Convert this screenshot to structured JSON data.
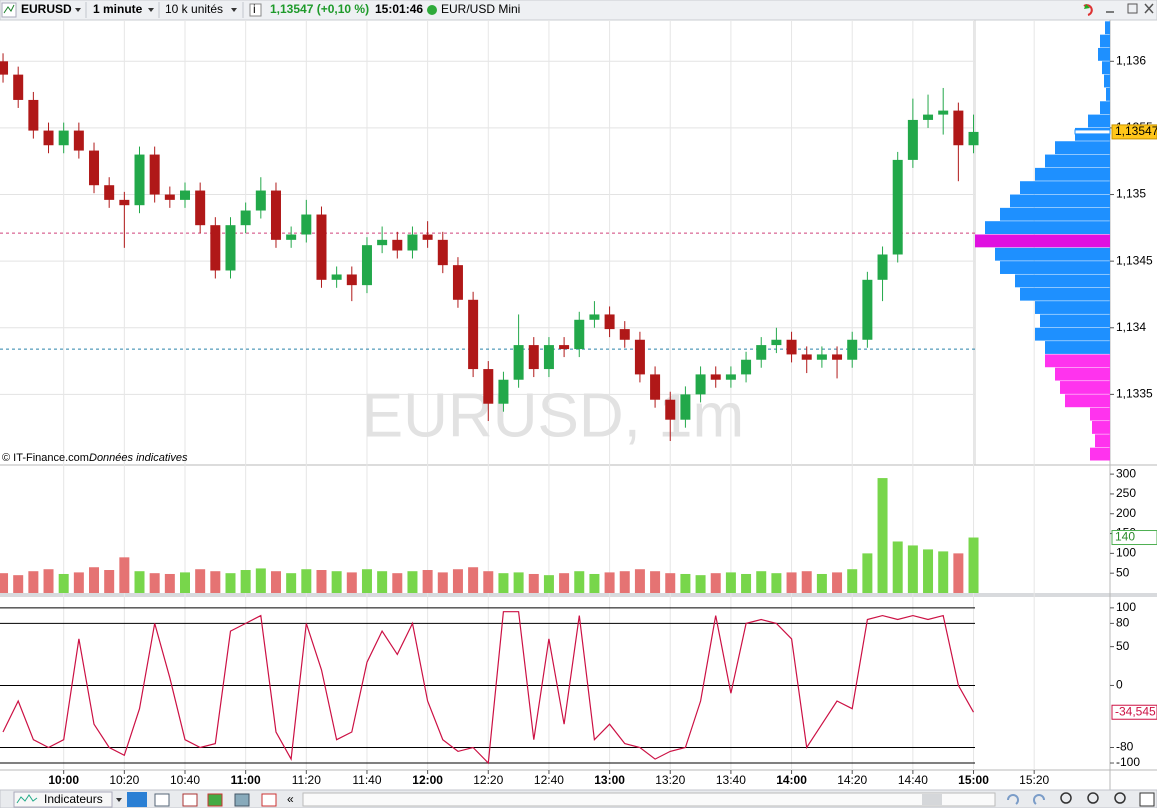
{
  "toolbar": {
    "symbol": "EURUSD",
    "interval": "1 minute",
    "size": "10 k unités",
    "quote": "1,13547 (+0,10 %)",
    "time": "15:01:46",
    "account": "EUR/USD Mini"
  },
  "footer": {
    "copyright": "© IT-Finance.com",
    "note": "Données indicatives"
  },
  "bottom_bar": {
    "indicators": "Indicateurs"
  },
  "chart_data": [
    {
      "type": "candlestick",
      "watermark": "EURUSD, 1m",
      "x": [
        "09:40",
        "09:45",
        "09:50",
        "09:55",
        "10:00",
        "10:05",
        "10:10",
        "10:15",
        "10:20",
        "10:25",
        "10:30",
        "10:35",
        "10:40",
        "10:45",
        "10:50",
        "10:55",
        "11:00",
        "11:05",
        "11:10",
        "11:15",
        "11:20",
        "11:25",
        "11:30",
        "11:35",
        "11:40",
        "11:45",
        "11:50",
        "11:55",
        "12:00",
        "12:05",
        "12:10",
        "12:15",
        "12:20",
        "12:25",
        "12:30",
        "12:35",
        "12:40",
        "12:45",
        "12:50",
        "12:55",
        "13:00",
        "13:05",
        "13:10",
        "13:15",
        "13:20",
        "13:25",
        "13:30",
        "13:35",
        "13:40",
        "13:45",
        "13:50",
        "13:55",
        "14:00",
        "14:05",
        "14:10",
        "14:15",
        "14:20",
        "14:25",
        "14:30",
        "14:35",
        "14:40",
        "14:45",
        "14:50",
        "14:55",
        "15:00"
      ],
      "open": [
        1.136,
        1.1359,
        1.13571,
        1.13548,
        1.13537,
        1.13548,
        1.13533,
        1.13507,
        1.13496,
        1.13492,
        1.1353,
        1.135,
        1.13496,
        1.13503,
        1.13477,
        1.13443,
        1.13477,
        1.13488,
        1.13503,
        1.13466,
        1.1347,
        1.13485,
        1.13436,
        1.1344,
        1.13432,
        1.13462,
        1.13466,
        1.13458,
        1.1347,
        1.13466,
        1.13447,
        1.13421,
        1.13369,
        1.13343,
        1.13361,
        1.13387,
        1.13369,
        1.13387,
        1.13384,
        1.13406,
        1.1341,
        1.13399,
        1.13391,
        1.13365,
        1.13346,
        1.13331,
        1.1335,
        1.13365,
        1.13361,
        1.13365,
        1.13376,
        1.13387,
        1.13391,
        1.1338,
        1.13376,
        1.1338,
        1.13376,
        1.13391,
        1.13436,
        1.13455,
        1.13526,
        1.13556,
        1.1356,
        1.13563,
        1.13537
      ],
      "high": [
        1.13606,
        1.13596,
        1.13577,
        1.13554,
        1.13554,
        1.13554,
        1.13539,
        1.13513,
        1.13502,
        1.13536,
        1.13536,
        1.13506,
        1.13509,
        1.13509,
        1.13483,
        1.13483,
        1.13494,
        1.13513,
        1.13509,
        1.13476,
        1.13496,
        1.13491,
        1.13446,
        1.13446,
        1.13468,
        1.13476,
        1.13472,
        1.13476,
        1.1348,
        1.13472,
        1.13453,
        1.13427,
        1.13375,
        1.13367,
        1.1341,
        1.13393,
        1.13393,
        1.13393,
        1.13412,
        1.1342,
        1.13416,
        1.13405,
        1.13397,
        1.13371,
        1.13352,
        1.13356,
        1.13371,
        1.13371,
        1.13371,
        1.13382,
        1.13393,
        1.134,
        1.13397,
        1.13386,
        1.13386,
        1.13386,
        1.13397,
        1.13442,
        1.13461,
        1.13532,
        1.13572,
        1.13575,
        1.1358,
        1.13569,
        1.1356
      ],
      "low": [
        1.13584,
        1.13565,
        1.13542,
        1.13531,
        1.13531,
        1.13527,
        1.13501,
        1.1349,
        1.1346,
        1.13486,
        1.13494,
        1.1349,
        1.1349,
        1.13471,
        1.13437,
        1.13437,
        1.13471,
        1.13482,
        1.1346,
        1.1346,
        1.13464,
        1.1343,
        1.1343,
        1.1342,
        1.13426,
        1.13456,
        1.13452,
        1.13452,
        1.1346,
        1.13441,
        1.13415,
        1.13363,
        1.1333,
        1.13337,
        1.13355,
        1.13363,
        1.13363,
        1.13378,
        1.13378,
        1.134,
        1.13393,
        1.13385,
        1.13359,
        1.1334,
        1.13315,
        1.13325,
        1.13344,
        1.13355,
        1.13355,
        1.13359,
        1.1337,
        1.13381,
        1.13374,
        1.13366,
        1.1337,
        1.13362,
        1.1337,
        1.13385,
        1.1342,
        1.13449,
        1.1352,
        1.1355,
        1.13545,
        1.1351,
        1.13531
      ],
      "close": [
        1.1359,
        1.13571,
        1.13548,
        1.13537,
        1.13548,
        1.13533,
        1.13507,
        1.13496,
        1.13492,
        1.1353,
        1.135,
        1.13496,
        1.13503,
        1.13477,
        1.13443,
        1.13477,
        1.13488,
        1.13503,
        1.13466,
        1.1347,
        1.13485,
        1.13436,
        1.1344,
        1.13432,
        1.13462,
        1.13466,
        1.13458,
        1.1347,
        1.13466,
        1.13447,
        1.13421,
        1.13369,
        1.13343,
        1.13361,
        1.13387,
        1.13369,
        1.13387,
        1.13384,
        1.13406,
        1.1341,
        1.13399,
        1.13391,
        1.13365,
        1.13346,
        1.13331,
        1.1335,
        1.13365,
        1.13361,
        1.13365,
        1.13376,
        1.13387,
        1.13391,
        1.1338,
        1.13376,
        1.1338,
        1.13376,
        1.13391,
        1.13436,
        1.13455,
        1.13526,
        1.13556,
        1.1356,
        1.13563,
        1.13537,
        1.13547
      ],
      "up_color": "#22a84a",
      "down_color": "#b01818",
      "xlim": [
        "09:39",
        "15:45"
      ],
      "ylim": [
        1.13297,
        1.13631
      ],
      "yticks": [
        {
          "value": 1.1335,
          "label": "1,1335"
        },
        {
          "value": 1.134,
          "label": "1,134"
        },
        {
          "value": 1.1345,
          "label": "1,1345"
        },
        {
          "value": 1.135,
          "label": "1,135"
        },
        {
          "value": 1.1355,
          "label": "1,1355"
        },
        {
          "value": 1.136,
          "label": "1,136"
        }
      ],
      "grid": true,
      "current": {
        "value": 1.13547,
        "label": "1,13547"
      },
      "levels": [
        {
          "value": 1.13471,
          "color": "#d0407a"
        },
        {
          "value": 1.13384,
          "color": "#2a84aa"
        }
      ],
      "volume_profile": {
        "prices": [
          1.13625,
          1.13615,
          1.13605,
          1.13595,
          1.13585,
          1.13575,
          1.13565,
          1.13555,
          1.13545,
          1.13535,
          1.13525,
          1.13515,
          1.13505,
          1.13495,
          1.13485,
          1.13475,
          1.13465,
          1.13455,
          1.13445,
          1.13435,
          1.13425,
          1.13415,
          1.13405,
          1.13395,
          1.13385,
          1.13375,
          1.13365,
          1.13355,
          1.13345,
          1.13335,
          1.13325,
          1.13315,
          1.13305
        ],
        "values": [
          5,
          10,
          12,
          8,
          6,
          4,
          10,
          22,
          35,
          55,
          65,
          75,
          90,
          100,
          110,
          125,
          135,
          115,
          110,
          95,
          90,
          75,
          70,
          75,
          65,
          65,
          55,
          50,
          45,
          20,
          18,
          15,
          20
        ],
        "color": "#1e90ff",
        "lower_color": "#ff33ee",
        "poc_color": "#e010e0"
      }
    },
    {
      "type": "bar",
      "x": [
        "09:40",
        "09:45",
        "09:50",
        "09:55",
        "10:00",
        "10:05",
        "10:10",
        "10:15",
        "10:20",
        "10:25",
        "10:30",
        "10:35",
        "10:40",
        "10:45",
        "10:50",
        "10:55",
        "11:00",
        "11:05",
        "11:10",
        "11:15",
        "11:20",
        "11:25",
        "11:30",
        "11:35",
        "11:40",
        "11:45",
        "11:50",
        "11:55",
        "12:00",
        "12:05",
        "12:10",
        "12:15",
        "12:20",
        "12:25",
        "12:30",
        "12:35",
        "12:40",
        "12:45",
        "12:50",
        "12:55",
        "13:00",
        "13:05",
        "13:10",
        "13:15",
        "13:20",
        "13:25",
        "13:30",
        "13:35",
        "13:40",
        "13:45",
        "13:50",
        "13:55",
        "14:00",
        "14:05",
        "14:10",
        "14:15",
        "14:20",
        "14:25",
        "14:30",
        "14:35",
        "14:40",
        "14:45",
        "14:50",
        "14:55",
        "15:00"
      ],
      "values": [
        50,
        45,
        55,
        60,
        48,
        52,
        65,
        58,
        90,
        55,
        50,
        48,
        52,
        60,
        55,
        50,
        58,
        62,
        55,
        50,
        60,
        58,
        55,
        52,
        60,
        55,
        50,
        55,
        58,
        52,
        60,
        65,
        55,
        50,
        52,
        48,
        45,
        50,
        55,
        48,
        52,
        55,
        60,
        55,
        50,
        48,
        45,
        50,
        52,
        48,
        55,
        50,
        52,
        55,
        48,
        52,
        60,
        100,
        290,
        130,
        120,
        110,
        105,
        100,
        140
      ],
      "up_color": "#78d64b",
      "down_color": "#e57373",
      "xlim": [
        "09:39",
        "15:45"
      ],
      "ylim": [
        0,
        323
      ],
      "yticks": [
        50,
        100,
        150,
        200,
        250,
        300
      ],
      "current": {
        "value": 140,
        "label": "140"
      }
    },
    {
      "type": "line",
      "x": [
        "09:40",
        "09:45",
        "09:50",
        "09:55",
        "10:00",
        "10:05",
        "10:10",
        "10:15",
        "10:20",
        "10:25",
        "10:30",
        "10:35",
        "10:40",
        "10:45",
        "10:50",
        "10:55",
        "11:00",
        "11:05",
        "11:10",
        "11:15",
        "11:20",
        "11:25",
        "11:30",
        "11:35",
        "11:40",
        "11:45",
        "11:50",
        "11:55",
        "12:00",
        "12:05",
        "12:10",
        "12:15",
        "12:20",
        "12:25",
        "12:30",
        "12:35",
        "12:40",
        "12:45",
        "12:50",
        "12:55",
        "13:00",
        "13:05",
        "13:10",
        "13:15",
        "13:20",
        "13:25",
        "13:30",
        "13:35",
        "13:40",
        "13:45",
        "13:50",
        "13:55",
        "14:00",
        "14:05",
        "14:10",
        "14:15",
        "14:20",
        "14:25",
        "14:30",
        "14:35",
        "14:40",
        "14:45",
        "14:50",
        "14:55",
        "15:00"
      ],
      "values": [
        -60,
        -20,
        -70,
        -80,
        -70,
        60,
        -50,
        -80,
        -90,
        -30,
        80,
        10,
        -70,
        -80,
        -75,
        70,
        80,
        90,
        -60,
        -95,
        80,
        20,
        -70,
        -60,
        30,
        70,
        40,
        80,
        -20,
        -70,
        -85,
        -80,
        -100,
        95,
        95,
        -70,
        60,
        -50,
        90,
        -70,
        -50,
        -75,
        -80,
        -95,
        -85,
        -80,
        -20,
        90,
        -10,
        80,
        85,
        80,
        60,
        -80,
        -50,
        -20,
        -30,
        85,
        90,
        85,
        90,
        85,
        90,
        0,
        -34.545
      ],
      "color": "#cc1144",
      "xlim": [
        "09:39",
        "15:45"
      ],
      "xticks": [
        "10:00",
        "10:20",
        "10:40",
        "11:00",
        "11:20",
        "11:40",
        "12:00",
        "12:20",
        "12:40",
        "13:00",
        "13:20",
        "13:40",
        "14:00",
        "14:20",
        "14:40",
        "15:00",
        "15:20"
      ],
      "ylim": [
        -109,
        114
      ],
      "yticks": [
        -100,
        -80,
        0,
        50,
        80,
        100
      ],
      "levels": [
        100,
        80,
        0,
        -80,
        -100
      ],
      "current": {
        "value": -34.545,
        "label": "-34,545"
      }
    }
  ]
}
